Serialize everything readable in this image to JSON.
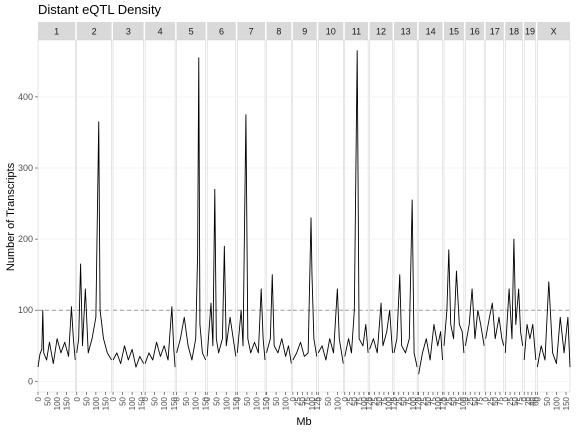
{
  "chart_data": {
    "type": "line",
    "title": "Distant eQTL Density",
    "xlabel": "Mb",
    "ylabel": "Number of Transcripts",
    "ylim": [
      -15,
      480
    ],
    "y_ticks": [
      0,
      100,
      200,
      300,
      400
    ],
    "threshold": 100,
    "threshold_style": "dashed",
    "facet_by": "chromosome",
    "chromosomes": [
      {
        "name": "1",
        "length": 195,
        "x_ticks": [
          0,
          50,
          100,
          150
        ]
      },
      {
        "name": "2",
        "length": 182,
        "x_ticks": [
          0,
          50,
          100,
          150
        ]
      },
      {
        "name": "3",
        "length": 160,
        "x_ticks": [
          0,
          50,
          100,
          150
        ]
      },
      {
        "name": "4",
        "length": 157,
        "x_ticks": [
          0,
          50,
          100,
          150
        ]
      },
      {
        "name": "5",
        "length": 152,
        "x_ticks": [
          0,
          50,
          100,
          150
        ]
      },
      {
        "name": "6",
        "length": 150,
        "x_ticks": [
          0,
          50,
          100,
          150
        ]
      },
      {
        "name": "7",
        "length": 145,
        "x_ticks": [
          0,
          50,
          100,
          150
        ]
      },
      {
        "name": "8",
        "length": 130,
        "x_ticks": [
          0,
          50,
          100
        ]
      },
      {
        "name": "9",
        "length": 125,
        "x_ticks": [
          0,
          25,
          50,
          75,
          100,
          125
        ]
      },
      {
        "name": "10",
        "length": 131,
        "x_ticks": [
          0,
          50,
          100
        ]
      },
      {
        "name": "11",
        "length": 122,
        "x_ticks": [
          0,
          25,
          50,
          75,
          100,
          125
        ]
      },
      {
        "name": "12",
        "length": 120,
        "x_ticks": [
          0,
          25,
          50,
          75,
          100,
          125
        ]
      },
      {
        "name": "13",
        "length": 121,
        "x_ticks": [
          0,
          25,
          50,
          75,
          100,
          125
        ]
      },
      {
        "name": "14",
        "length": 125,
        "x_ticks": [
          0,
          25,
          50,
          75,
          100,
          125
        ]
      },
      {
        "name": "15",
        "length": 104,
        "x_ticks": [
          0,
          25,
          50,
          75,
          100
        ]
      },
      {
        "name": "16",
        "length": 98,
        "x_ticks": [
          0,
          25,
          50,
          75
        ]
      },
      {
        "name": "17",
        "length": 95,
        "x_ticks": [
          0,
          25,
          50,
          75
        ]
      },
      {
        "name": "18",
        "length": 91,
        "x_ticks": [
          0,
          25,
          50,
          75
        ]
      },
      {
        "name": "19",
        "length": 61,
        "x_ticks": [
          0,
          20,
          40,
          60
        ]
      },
      {
        "name": "X",
        "length": 171,
        "x_ticks": [
          0,
          50,
          100,
          150
        ]
      }
    ],
    "series": [
      {
        "chr": "1",
        "points": [
          [
            0,
            20
          ],
          [
            10,
            38
          ],
          [
            20,
            45
          ],
          [
            25,
            100
          ],
          [
            30,
            40
          ],
          [
            45,
            30
          ],
          [
            60,
            55
          ],
          [
            80,
            25
          ],
          [
            100,
            60
          ],
          [
            120,
            40
          ],
          [
            140,
            55
          ],
          [
            160,
            35
          ],
          [
            175,
            105
          ],
          [
            185,
            60
          ],
          [
            195,
            30
          ]
        ]
      },
      {
        "chr": "2",
        "points": [
          [
            0,
            40
          ],
          [
            10,
            60
          ],
          [
            20,
            165
          ],
          [
            30,
            50
          ],
          [
            45,
            130
          ],
          [
            60,
            40
          ],
          [
            80,
            60
          ],
          [
            100,
            90
          ],
          [
            115,
            365
          ],
          [
            122,
            100
          ],
          [
            140,
            60
          ],
          [
            160,
            40
          ],
          [
            182,
            30
          ]
        ]
      },
      {
        "chr": "3",
        "points": [
          [
            0,
            30
          ],
          [
            20,
            40
          ],
          [
            40,
            25
          ],
          [
            60,
            50
          ],
          [
            80,
            30
          ],
          [
            100,
            45
          ],
          [
            120,
            20
          ],
          [
            140,
            35
          ],
          [
            160,
            25
          ]
        ]
      },
      {
        "chr": "4",
        "points": [
          [
            0,
            25
          ],
          [
            20,
            40
          ],
          [
            40,
            30
          ],
          [
            60,
            55
          ],
          [
            80,
            35
          ],
          [
            100,
            50
          ],
          [
            120,
            30
          ],
          [
            140,
            105
          ],
          [
            150,
            45
          ],
          [
            157,
            20
          ]
        ]
      },
      {
        "chr": "5",
        "points": [
          [
            0,
            40
          ],
          [
            20,
            60
          ],
          [
            40,
            90
          ],
          [
            60,
            50
          ],
          [
            80,
            30
          ],
          [
            100,
            60
          ],
          [
            110,
            180
          ],
          [
            116,
            455
          ],
          [
            122,
            80
          ],
          [
            135,
            40
          ],
          [
            152,
            30
          ]
        ]
      },
      {
        "chr": "6",
        "points": [
          [
            0,
            35
          ],
          [
            20,
            110
          ],
          [
            30,
            50
          ],
          [
            40,
            270
          ],
          [
            48,
            60
          ],
          [
            60,
            40
          ],
          [
            80,
            60
          ],
          [
            90,
            190
          ],
          [
            100,
            50
          ],
          [
            120,
            90
          ],
          [
            150,
            35
          ]
        ]
      },
      {
        "chr": "7",
        "points": [
          [
            0,
            40
          ],
          [
            20,
            100
          ],
          [
            30,
            50
          ],
          [
            45,
            375
          ],
          [
            55,
            60
          ],
          [
            70,
            40
          ],
          [
            90,
            55
          ],
          [
            110,
            40
          ],
          [
            125,
            130
          ],
          [
            135,
            60
          ],
          [
            145,
            30
          ]
        ]
      },
      {
        "chr": "8",
        "points": [
          [
            0,
            40
          ],
          [
            20,
            60
          ],
          [
            30,
            150
          ],
          [
            40,
            50
          ],
          [
            60,
            40
          ],
          [
            80,
            60
          ],
          [
            100,
            35
          ],
          [
            115,
            50
          ],
          [
            130,
            25
          ]
        ]
      },
      {
        "chr": "9",
        "points": [
          [
            0,
            30
          ],
          [
            20,
            40
          ],
          [
            40,
            55
          ],
          [
            60,
            35
          ],
          [
            80,
            40
          ],
          [
            95,
            230
          ],
          [
            100,
            150
          ],
          [
            110,
            60
          ],
          [
            125,
            35
          ]
        ]
      },
      {
        "chr": "10",
        "points": [
          [
            0,
            40
          ],
          [
            20,
            50
          ],
          [
            40,
            30
          ],
          [
            60,
            60
          ],
          [
            80,
            40
          ],
          [
            100,
            130
          ],
          [
            110,
            60
          ],
          [
            131,
            25
          ]
        ]
      },
      {
        "chr": "11",
        "points": [
          [
            0,
            35
          ],
          [
            20,
            60
          ],
          [
            35,
            40
          ],
          [
            50,
            100
          ],
          [
            65,
            465
          ],
          [
            75,
            60
          ],
          [
            95,
            50
          ],
          [
            110,
            80
          ],
          [
            122,
            40
          ]
        ]
      },
      {
        "chr": "12",
        "points": [
          [
            0,
            45
          ],
          [
            20,
            60
          ],
          [
            40,
            40
          ],
          [
            60,
            110
          ],
          [
            70,
            50
          ],
          [
            90,
            70
          ],
          [
            105,
            100
          ],
          [
            120,
            40
          ]
        ]
      },
      {
        "chr": "13",
        "points": [
          [
            0,
            40
          ],
          [
            15,
            60
          ],
          [
            30,
            150
          ],
          [
            40,
            50
          ],
          [
            60,
            40
          ],
          [
            80,
            60
          ],
          [
            95,
            255
          ],
          [
            105,
            40
          ],
          [
            121,
            20
          ]
        ]
      },
      {
        "chr": "14",
        "points": [
          [
            0,
            10
          ],
          [
            20,
            40
          ],
          [
            40,
            60
          ],
          [
            60,
            30
          ],
          [
            80,
            80
          ],
          [
            100,
            50
          ],
          [
            115,
            70
          ],
          [
            125,
            30
          ]
        ]
      },
      {
        "chr": "15",
        "points": [
          [
            0,
            50
          ],
          [
            15,
            100
          ],
          [
            25,
            185
          ],
          [
            35,
            80
          ],
          [
            50,
            60
          ],
          [
            65,
            155
          ],
          [
            80,
            80
          ],
          [
            95,
            70
          ],
          [
            104,
            40
          ]
        ]
      },
      {
        "chr": "16",
        "points": [
          [
            0,
            50
          ],
          [
            20,
            80
          ],
          [
            35,
            130
          ],
          [
            50,
            60
          ],
          [
            65,
            100
          ],
          [
            80,
            80
          ],
          [
            98,
            50
          ]
        ]
      },
      {
        "chr": "17",
        "points": [
          [
            0,
            60
          ],
          [
            20,
            90
          ],
          [
            35,
            110
          ],
          [
            50,
            60
          ],
          [
            70,
            90
          ],
          [
            85,
            60
          ],
          [
            95,
            50
          ]
        ]
      },
      {
        "chr": "18",
        "points": [
          [
            0,
            40
          ],
          [
            20,
            130
          ],
          [
            35,
            60
          ],
          [
            45,
            200
          ],
          [
            55,
            80
          ],
          [
            70,
            130
          ],
          [
            80,
            70
          ],
          [
            91,
            50
          ]
        ]
      },
      {
        "chr": "19",
        "points": [
          [
            0,
            30
          ],
          [
            15,
            80
          ],
          [
            30,
            60
          ],
          [
            45,
            80
          ],
          [
            61,
            30
          ]
        ]
      },
      {
        "chr": "X",
        "points": [
          [
            0,
            20
          ],
          [
            20,
            50
          ],
          [
            40,
            30
          ],
          [
            60,
            140
          ],
          [
            80,
            40
          ],
          [
            100,
            25
          ],
          [
            120,
            90
          ],
          [
            140,
            40
          ],
          [
            160,
            90
          ],
          [
            171,
            20
          ]
        ]
      }
    ]
  },
  "style": {
    "line_color": "#000000",
    "strip_fill": "#d9d9d9",
    "panel_fill": "#ffffff",
    "grid_color": "#ebebeb",
    "threshold_color": "#999999"
  }
}
